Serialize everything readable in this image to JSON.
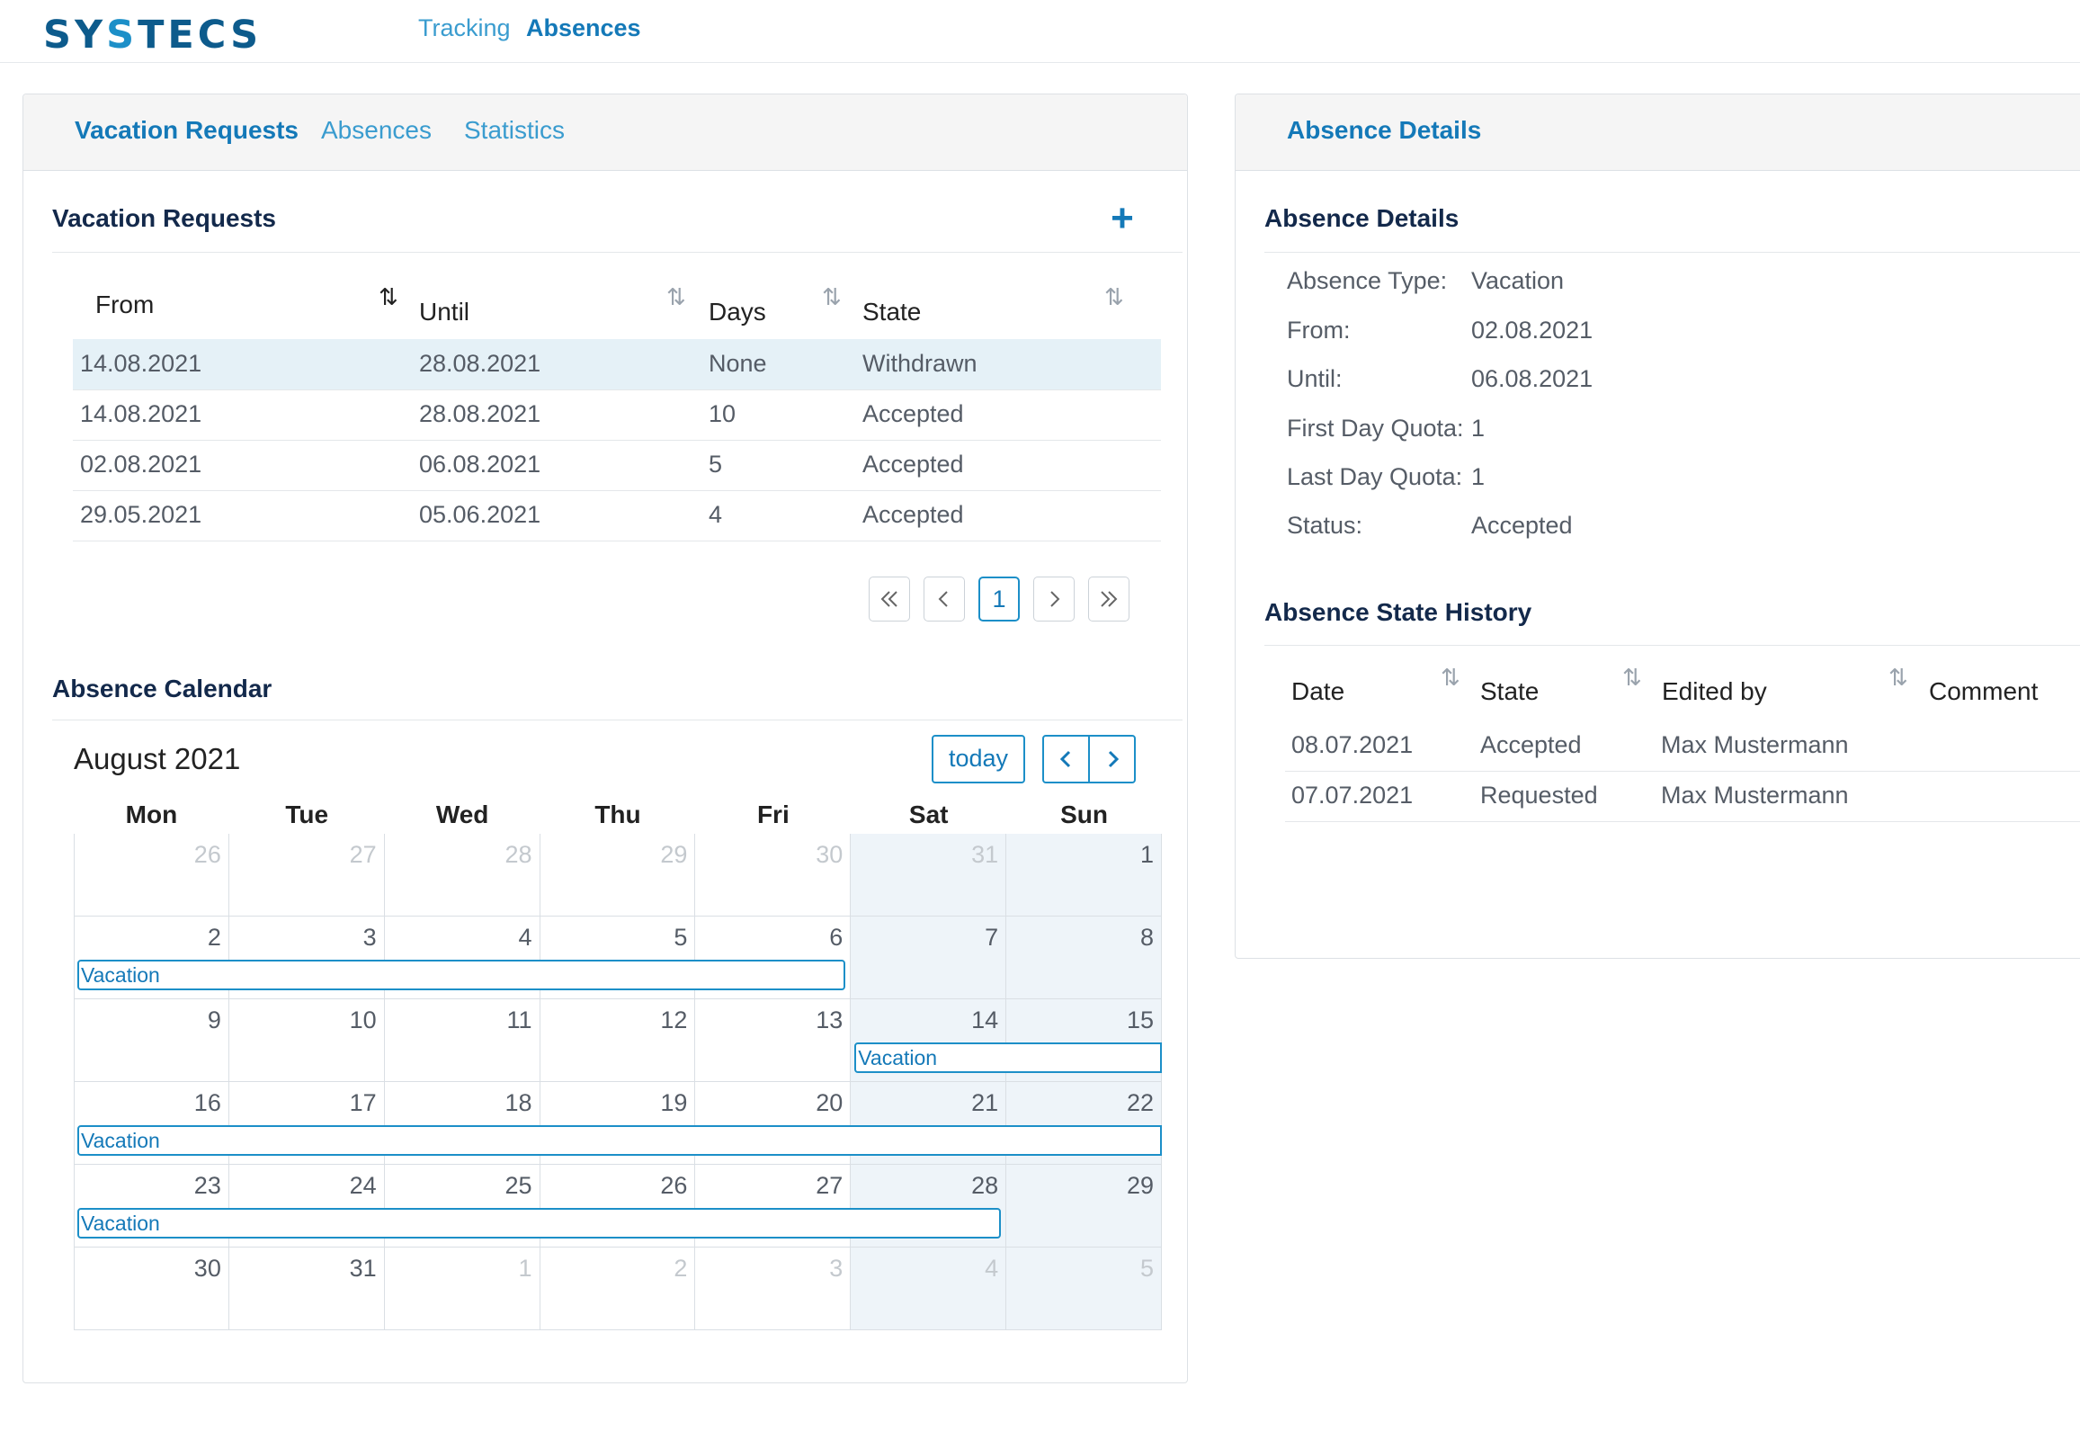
{
  "header": {
    "logo_prefix": "SY",
    "logo_accent": "S",
    "logo_suffix": "TECS",
    "nav": [
      {
        "label": "Tracking",
        "active": false
      },
      {
        "label": "Absences",
        "active": true
      }
    ]
  },
  "left_panel": {
    "tabs": [
      {
        "label": "Vacation Requests",
        "active": true
      },
      {
        "label": "Absences",
        "active": false
      },
      {
        "label": "Statistics",
        "active": false
      }
    ],
    "requests": {
      "title": "Vacation Requests",
      "add_icon": "plus-icon",
      "columns": [
        "From",
        "Until",
        "Days",
        "State"
      ],
      "rows": [
        {
          "from": "14.08.2021",
          "until": "28.08.2021",
          "days": "None",
          "state": "Withdrawn",
          "selected": true
        },
        {
          "from": "14.08.2021",
          "until": "28.08.2021",
          "days": "10",
          "state": "Accepted",
          "selected": false
        },
        {
          "from": "02.08.2021",
          "until": "06.08.2021",
          "days": "5",
          "state": "Accepted",
          "selected": false
        },
        {
          "from": "29.05.2021",
          "until": "05.06.2021",
          "days": "4",
          "state": "Accepted",
          "selected": false
        }
      ],
      "pagination": {
        "current": "1"
      }
    },
    "calendar": {
      "title": "Absence Calendar",
      "month": "August 2021",
      "today_label": "today",
      "weekdays": [
        "Mon",
        "Tue",
        "Wed",
        "Thu",
        "Fri",
        "Sat",
        "Sun"
      ],
      "weeks": [
        [
          "26",
          "27",
          "28",
          "29",
          "30",
          "31",
          "1"
        ],
        [
          "2",
          "3",
          "4",
          "5",
          "6",
          "7",
          "8"
        ],
        [
          "9",
          "10",
          "11",
          "12",
          "13",
          "14",
          "15"
        ],
        [
          "16",
          "17",
          "18",
          "19",
          "20",
          "21",
          "22"
        ],
        [
          "23",
          "24",
          "25",
          "26",
          "27",
          "28",
          "29"
        ],
        [
          "30",
          "31",
          "1",
          "2",
          "3",
          "4",
          "5"
        ]
      ],
      "event_label": "Vacation"
    }
  },
  "right_panel": {
    "tab": "Absence Details",
    "details_title": "Absence Details",
    "details": [
      {
        "label": "Absence Type:",
        "value": "Vacation"
      },
      {
        "label": "From:",
        "value": "02.08.2021"
      },
      {
        "label": "Until:",
        "value": "06.08.2021"
      },
      {
        "label": "First Day Quota:",
        "value": "1"
      },
      {
        "label": "Last Day Quota:",
        "value": "1"
      },
      {
        "label": "Status:",
        "value": "Accepted"
      }
    ],
    "history_title": "Absence State History",
    "history_columns": [
      "Date",
      "State",
      "Edited by",
      "Comment"
    ],
    "history": [
      {
        "date": "08.07.2021",
        "state": "Accepted",
        "edited_by": "Max Mustermann",
        "comment": ""
      },
      {
        "date": "07.07.2021",
        "state": "Requested",
        "edited_by": "Max Mustermann",
        "comment": ""
      }
    ]
  },
  "colors": {
    "primary": "#1479b8",
    "accent": "#1c8fc8",
    "title": "#13294b",
    "weekend": "#eef4f9"
  }
}
